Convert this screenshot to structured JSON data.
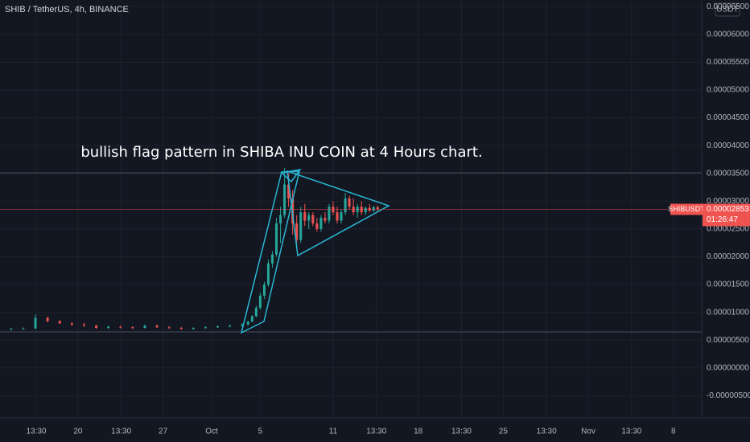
{
  "chart_data": {
    "type": "candlestick",
    "title": "SHIB / TetherUS, 4h, BINANCE",
    "annotation": "bullish flag pattern in SHIBA INU COIN at 4 Hours chart.",
    "currency": "USDT",
    "symbol_tag": "SHIBUSDT",
    "last_price": 2.853e-05,
    "countdown": "01:26:47",
    "up_color": "#26a69a",
    "down_color": "#ef5350",
    "grid": true,
    "x": [
      "09-14 12:00",
      "09-15 12:00",
      "09-16 12:00",
      "09-17 12:00",
      "09-18 12:00",
      "09-19 12:00",
      "09-20 12:00",
      "09-21 12:00",
      "09-22 12:00",
      "09-23 12:00",
      "09-24 12:00",
      "09-25 12:00",
      "09-26 12:00",
      "09-27 12:00",
      "09-28 12:00",
      "09-29 12:00",
      "09-30 12:00",
      "10-01 12:00",
      "10-02 12:00",
      "10-03 12:00",
      "10-04 00:00",
      "10-04 08:00",
      "10-04 16:00",
      "10-05 00:00",
      "10-05 08:00",
      "10-05 16:00",
      "10-06 00:00",
      "10-06 08:00",
      "10-06 16:00",
      "10-07 00:00",
      "10-07 08:00",
      "10-07 16:00",
      "10-08 00:00",
      "10-08 08:00",
      "10-08 16:00",
      "10-09 00:00",
      "10-09 08:00",
      "10-09 16:00",
      "10-10 00:00",
      "10-10 08:00",
      "10-10 16:00",
      "10-11 00:00",
      "10-11 08:00",
      "10-11 16:00",
      "10-12 00:00",
      "10-12 08:00",
      "10-12 16:00",
      "10-13 00:00",
      "10-13 08:00",
      "10-13 16:00",
      "10-14 00:00",
      "10-14 08:00",
      "10-14 16:00"
    ],
    "open": [
      6.9e-06,
      7e-06,
      7.1e-06,
      9e-06,
      8.4e-06,
      8e-06,
      7.8e-06,
      7.6e-06,
      7.2e-06,
      7.4e-06,
      7.3e-06,
      7.2e-06,
      7.6e-06,
      7.3e-06,
      7.2e-06,
      7e-06,
      7.2e-06,
      7.3e-06,
      7.5e-06,
      7.6e-06,
      7.8e-06,
      8.3e-06,
      9.3e-06,
      1.08e-05,
      1.3e-05,
      1.5e-05,
      1.88e-05,
      2.04e-05,
      2.6e-05,
      2.75e-05,
      3.3e-05,
      3.05e-05,
      2.6e-05,
      2.3e-05,
      2.8e-05,
      2.65e-05,
      2.75e-05,
      2.6e-05,
      2.5e-05,
      2.7e-05,
      2.65e-05,
      2.9e-05,
      2.8e-05,
      2.65e-05,
      2.8e-05,
      3.05e-05,
      2.9e-05,
      2.8e-05,
      2.9e-05,
      2.8e-05,
      2.88e-05,
      2.83e-05,
      2.89e-05
    ],
    "high": [
      7.2e-06,
      7.3e-06,
      9.6e-06,
      9.2e-06,
      8.6e-06,
      8.3e-06,
      8.1e-06,
      7.8e-06,
      7.6e-06,
      7.6e-06,
      7.5e-06,
      7.8e-06,
      7.8e-06,
      7.5e-06,
      7.4e-06,
      7.3e-06,
      7.5e-06,
      7.6e-06,
      7.8e-06,
      8e-06,
      8.5e-06,
      9.5e-06,
      1.12e-05,
      1.35e-05,
      1.55e-05,
      1.95e-05,
      2.1e-05,
      2.7e-05,
      2.9e-05,
      3.6e-05,
      3.5e-05,
      3.2e-05,
      2.75e-05,
      2.9e-05,
      2.95e-05,
      2.8e-05,
      2.8e-05,
      2.7e-05,
      2.75e-05,
      2.8e-05,
      2.95e-05,
      3e-05,
      2.9e-05,
      2.85e-05,
      3.15e-05,
      3.1e-05,
      3.05e-05,
      2.95e-05,
      3e-05,
      2.9e-05,
      2.95e-05,
      2.92e-05,
      2.92e-05
    ],
    "low": [
      6.8e-06,
      6.9e-06,
      7e-06,
      8.2e-06,
      7.9e-06,
      7.6e-06,
      7.4e-06,
      7e-06,
      7e-06,
      7.1e-06,
      7e-06,
      7.1e-06,
      7.2e-06,
      7e-06,
      6.9e-06,
      6.9e-06,
      7.1e-06,
      7.2e-06,
      7.3e-06,
      7.4e-06,
      7.6e-06,
      8.2e-06,
      9.1e-06,
      1.05e-05,
      1.24e-05,
      1.46e-05,
      1.8e-05,
      2e-05,
      2.25e-05,
      2.7e-05,
      2.9e-05,
      2.4e-05,
      2.15e-05,
      2.25e-05,
      2.55e-05,
      2.5e-05,
      2.55e-05,
      2.45e-05,
      2.45e-05,
      2.6e-05,
      2.6e-05,
      2.75e-05,
      2.6e-05,
      2.6e-05,
      2.75e-05,
      2.85e-05,
      2.75e-05,
      2.7e-05,
      2.75e-05,
      2.75e-05,
      2.8e-05,
      2.8e-05,
      2.82e-05
    ],
    "close": [
      7e-06,
      7.1e-06,
      9e-06,
      8.4e-06,
      8e-06,
      7.8e-06,
      7.6e-06,
      7.2e-06,
      7.4e-06,
      7.3e-06,
      7.2e-06,
      7.6e-06,
      7.3e-06,
      7.2e-06,
      7e-06,
      7.2e-06,
      7.3e-06,
      7.5e-06,
      7.6e-06,
      7.8e-06,
      8.3e-06,
      9.3e-06,
      1.08e-05,
      1.3e-05,
      1.5e-05,
      1.88e-05,
      2.04e-05,
      2.6e-05,
      2.75e-05,
      3.3e-05,
      3.05e-05,
      2.6e-05,
      2.3e-05,
      2.8e-05,
      2.65e-05,
      2.75e-05,
      2.6e-05,
      2.5e-05,
      2.7e-05,
      2.65e-05,
      2.9e-05,
      2.8e-05,
      2.65e-05,
      2.8e-05,
      3.05e-05,
      2.9e-05,
      2.8e-05,
      2.9e-05,
      2.8e-05,
      2.88e-05,
      2.83e-05,
      2.89e-05,
      2.853e-05
    ],
    "xlim": [
      "09-13 14:00",
      "11-10 08:00"
    ],
    "xticks": [
      {
        "value": "09-16 13:30",
        "label": "13:30"
      },
      {
        "value": "09-20 00:00",
        "label": "20"
      },
      {
        "value": "09-23 13:30",
        "label": "13:30"
      },
      {
        "value": "09-27 00:00",
        "label": "27"
      },
      {
        "value": "10-01 00:00",
        "label": "Oct"
      },
      {
        "value": "10-05 00:00",
        "label": "5"
      },
      {
        "value": "10-11 00:00",
        "label": "11"
      },
      {
        "value": "10-14 13:30",
        "label": "13:30"
      },
      {
        "value": "10-18 00:00",
        "label": "18"
      },
      {
        "value": "10-21 13:30",
        "label": "13:30"
      },
      {
        "value": "10-25 00:00",
        "label": "25"
      },
      {
        "value": "10-28 13:30",
        "label": "13:30"
      },
      {
        "value": "11-01 00:00",
        "label": "Nov"
      },
      {
        "value": "11-04 13:30",
        "label": "13:30"
      },
      {
        "value": "11-08 00:00",
        "label": "8"
      }
    ],
    "ylim": [
      -9e-06,
      6.62e-05
    ],
    "yticks": [
      {
        "value": 6.5e-05,
        "label": "0.00006500"
      },
      {
        "value": 6e-05,
        "label": "0.00006000"
      },
      {
        "value": 5.5e-05,
        "label": "0.00005500"
      },
      {
        "value": 5e-05,
        "label": "0.00005000"
      },
      {
        "value": 4.5e-05,
        "label": "0.00004500"
      },
      {
        "value": 4e-05,
        "label": "0.00004000"
      },
      {
        "value": 3.5e-05,
        "label": "0.00003500"
      },
      {
        "value": 3e-05,
        "label": "0.00003000"
      },
      {
        "value": 2.5e-05,
        "label": "0.00002500"
      },
      {
        "value": 2e-05,
        "label": "0.00002000"
      },
      {
        "value": 1.5e-05,
        "label": "0.00001500"
      },
      {
        "value": 1e-05,
        "label": "0.00001000"
      },
      {
        "value": 5e-06,
        "label": "0.00000500"
      },
      {
        "value": 0,
        "label": "0.00000000"
      },
      {
        "value": -5e-06,
        "label": "-0.00000500"
      }
    ]
  }
}
